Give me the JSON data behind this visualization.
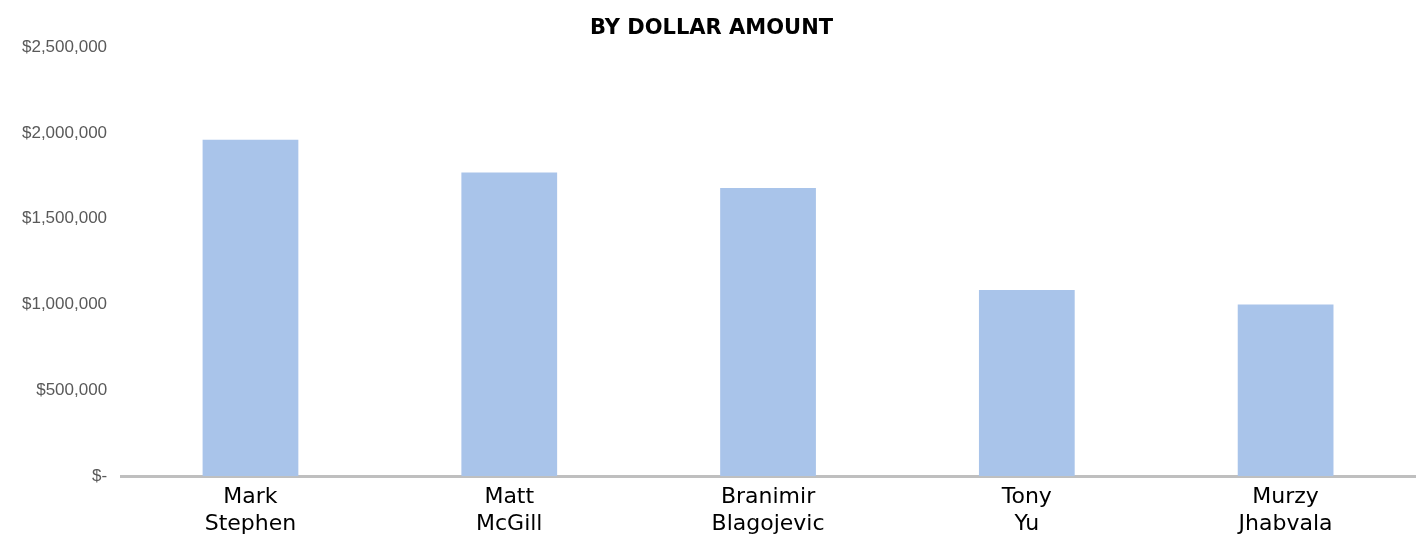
{
  "chart_data": {
    "type": "bar",
    "title": "BY DOLLAR AMOUNT",
    "categories": [
      "Mark Stephen",
      "Matt McGill",
      "Branimir Blagojevic",
      "Tony Yu",
      "Murzy Jhabvala"
    ],
    "values": [
      1960000,
      1770000,
      1680000,
      1085000,
      1000000
    ],
    "color": "#a9c4ea",
    "ylim": [
      0,
      2500000
    ],
    "yticks": [
      {
        "value": 0,
        "label": "$-"
      },
      {
        "value": 500000,
        "label": "$500,000"
      },
      {
        "value": 1000000,
        "label": "$1,000,000"
      },
      {
        "value": 1500000,
        "label": "$1,500,000"
      },
      {
        "value": 2000000,
        "label": "$2,000,000"
      },
      {
        "value": 2500000,
        "label": "$2,500,000"
      }
    ],
    "grid": false,
    "legend": false
  }
}
